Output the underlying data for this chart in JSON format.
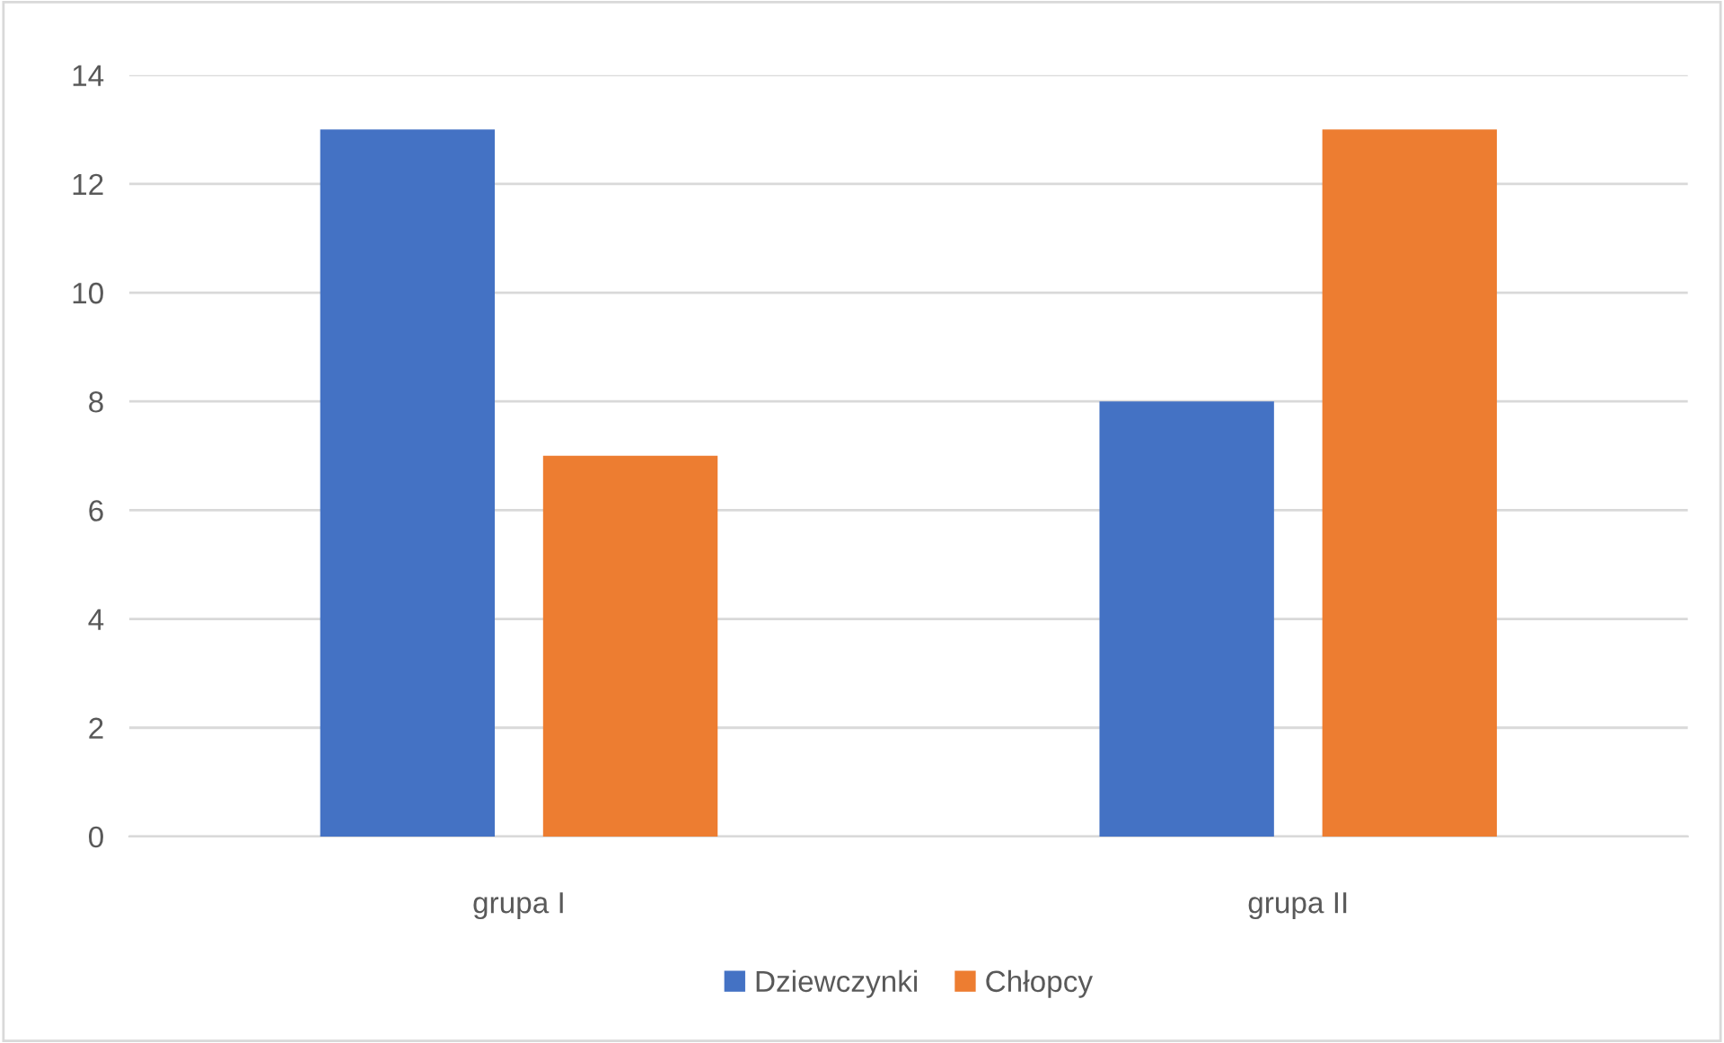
{
  "chart_data": {
    "type": "bar",
    "categories": [
      "grupa I",
      "grupa II"
    ],
    "series": [
      {
        "name": "Dziewczynki",
        "color": "#4472c4",
        "values": [
          13,
          8
        ]
      },
      {
        "name": "Chłopcy",
        "color": "#ed7d31",
        "values": [
          7,
          13
        ]
      }
    ],
    "ylim": [
      0,
      14
    ],
    "yticks": [
      0,
      2,
      4,
      6,
      8,
      10,
      12,
      14
    ],
    "grid": "y",
    "legend": "bottom"
  }
}
